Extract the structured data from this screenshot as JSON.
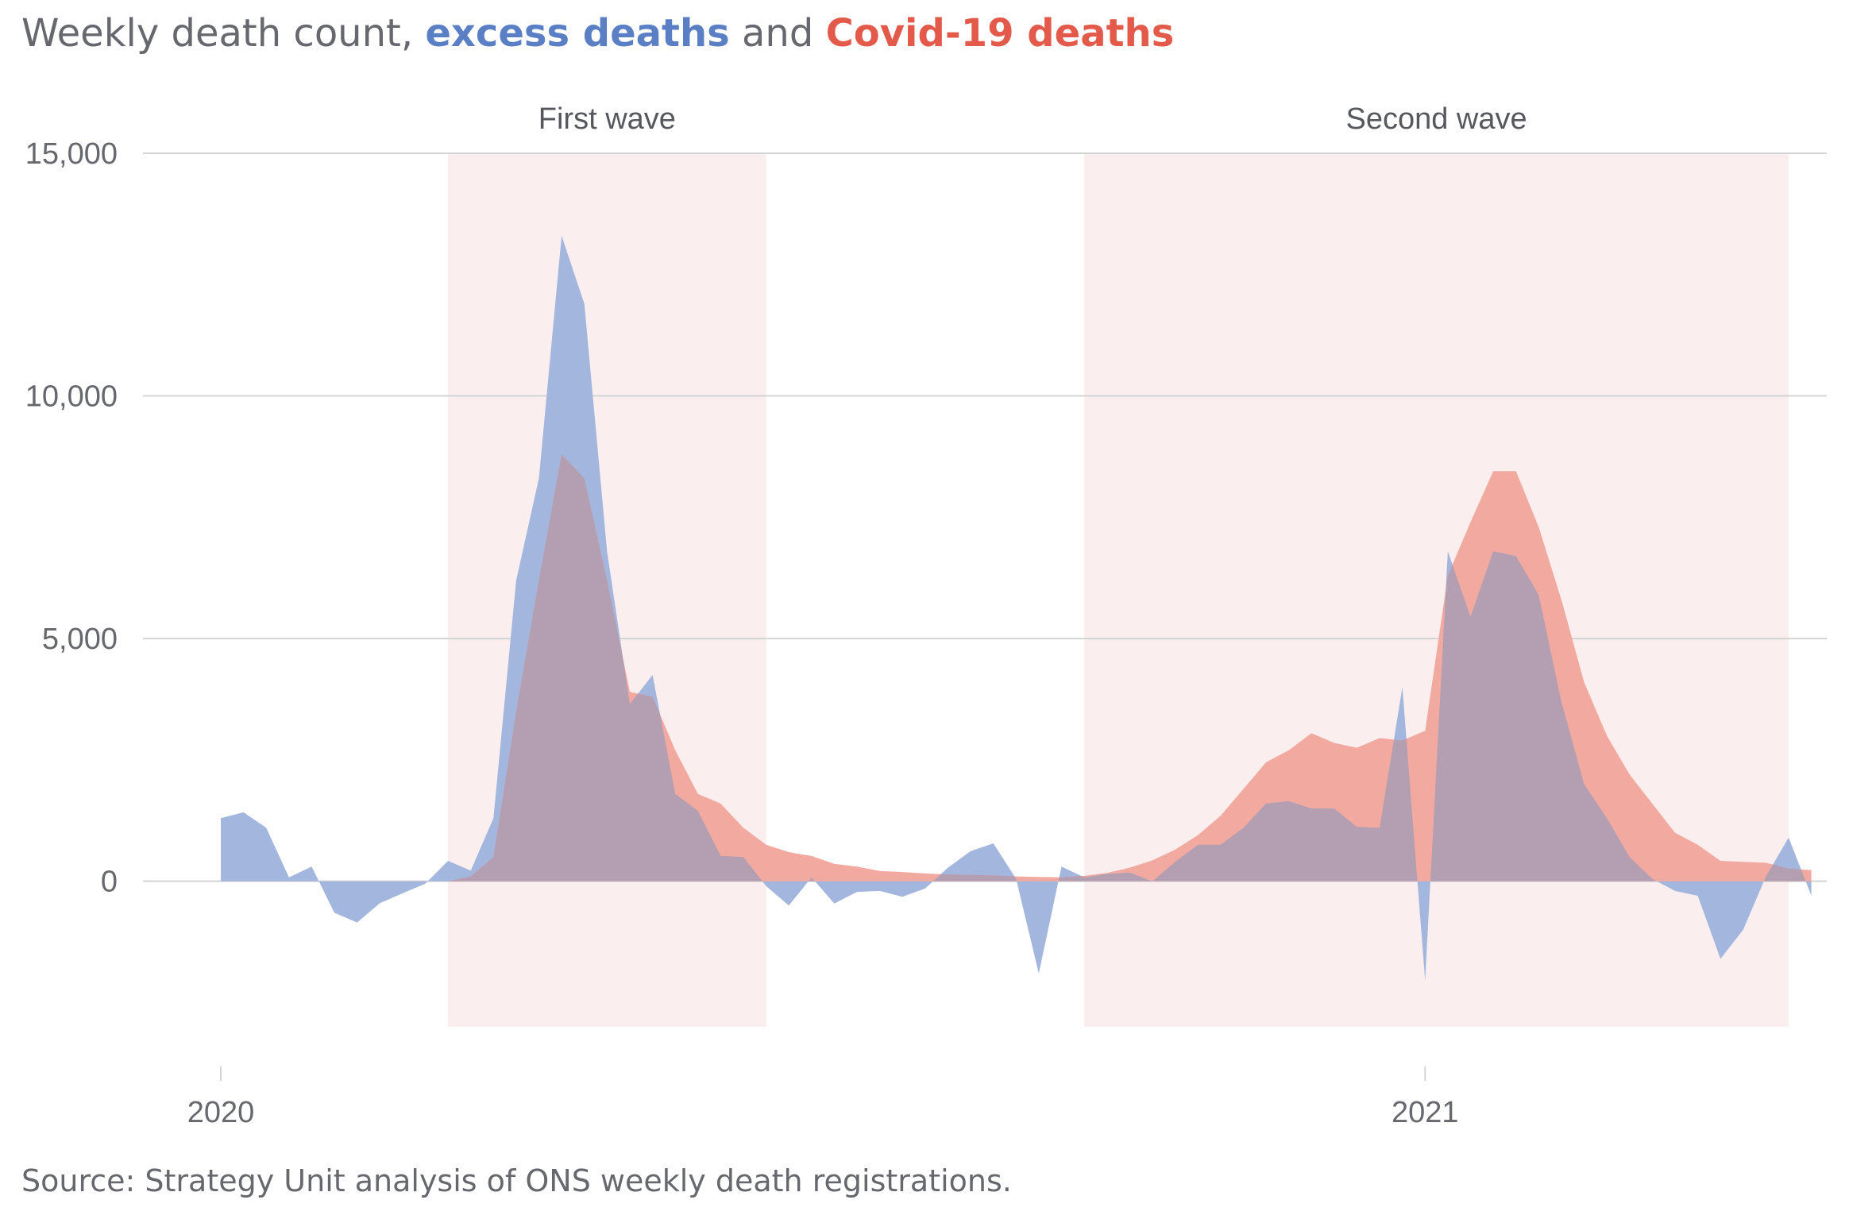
{
  "title": {
    "prefix": "Weekly death count, ",
    "excess": "excess deaths",
    "middle": "  and ",
    "covid": "Covid-19 deaths"
  },
  "source": "Source: Strategy Unit analysis of ONS weekly death registrations.",
  "colors": {
    "excess": "#5a7fc4",
    "excess_fill": "#a3b6de",
    "covid": "#e35a4a",
    "covid_fill": "#f2aaa0",
    "overlap": "#b49eb2",
    "wave_band": "#fbeeee",
    "grid": "#d4d4d4",
    "text": "#66686e"
  },
  "chart_data": {
    "type": "area",
    "x_ticks": [
      "2020",
      "2021"
    ],
    "ylim": [
      -3000,
      15000
    ],
    "y_ticks": [
      0,
      5000,
      10000,
      15000
    ],
    "y_tick_labels": [
      "0",
      "5,000",
      "10,000",
      "15,000"
    ],
    "grid": "horizontal",
    "wave_bands": [
      {
        "label": "First wave",
        "start_week": 10,
        "end_week": 24
      },
      {
        "label": "Second wave",
        "start_week": 38,
        "end_week": 69
      }
    ],
    "x_week_start": 0,
    "x_week_end": 69,
    "year_tick_weeks": [
      0,
      53
    ],
    "series": [
      {
        "name": "excess deaths",
        "start_week": 0,
        "values": [
          1300,
          1420,
          1100,
          80,
          300,
          -650,
          -850,
          -450,
          -250,
          -50,
          420,
          220,
          1300,
          6200,
          8300,
          13300,
          11900,
          6800,
          3650,
          4250,
          1800,
          1450,
          520,
          500,
          -100,
          -500,
          80,
          -460,
          -220,
          -200,
          -320,
          -150,
          280,
          620,
          780,
          50,
          -1900,
          300,
          80,
          150,
          180,
          0,
          400,
          750,
          750,
          1100,
          1600,
          1650,
          1500,
          1500,
          1120,
          1100,
          4000,
          -2050,
          6800,
          5450,
          6800,
          6700,
          5900,
          3700,
          2000,
          1300,
          500,
          50,
          -200,
          -300,
          -1600,
          -1000,
          100,
          900,
          -300
        ]
      },
      {
        "name": "Covid-19 deaths",
        "start_week": 10,
        "values": [
          0,
          100,
          500,
          3500,
          6200,
          8800,
          8300,
          6200,
          3900,
          3800,
          2700,
          1800,
          1600,
          1100,
          750,
          600,
          520,
          360,
          300,
          210,
          190,
          160,
          140,
          130,
          120,
          100,
          90,
          80,
          110,
          170,
          280,
          430,
          650,
          950,
          1350,
          1900,
          2450,
          2700,
          3050,
          2850,
          2750,
          2950,
          2900,
          3100,
          6300,
          7400,
          8450,
          8450,
          7300,
          5800,
          4100,
          3000,
          2200,
          1600,
          1000,
          750,
          420,
          400,
          380,
          260,
          230
        ]
      }
    ]
  }
}
